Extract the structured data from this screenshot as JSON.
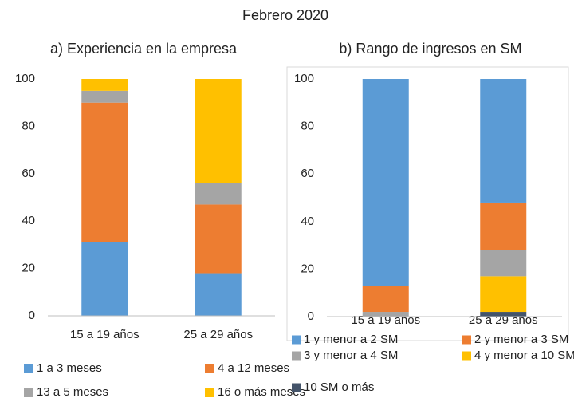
{
  "title": "Febrero 2020",
  "chart_data": [
    {
      "type": "bar",
      "stacked": true,
      "title": "a) Experiencia en la empresa",
      "categories": [
        "15 a 19 años",
        "25 a 29 años"
      ],
      "series": [
        {
          "name": "1 a 3 meses",
          "color": "#5b9bd5",
          "values": [
            31,
            18
          ]
        },
        {
          "name": "4 a 12 meses",
          "color": "#ed7d31",
          "values": [
            59,
            29
          ]
        },
        {
          "name": "13 a 5 meses",
          "color": "#a5a5a5",
          "values": [
            5,
            9
          ]
        },
        {
          "name": "16 o más meses",
          "color": "#ffc000",
          "values": [
            5,
            44
          ]
        }
      ],
      "ylim": [
        0,
        100
      ],
      "yticks": [
        0,
        20,
        40,
        60,
        80,
        100
      ]
    },
    {
      "type": "bar",
      "stacked": true,
      "title": "b) Rango de ingresos en SM",
      "categories": [
        "15 a 19 años",
        "25 a 29 años"
      ],
      "series": [
        {
          "name": "10 SM o más",
          "color": "#44546a",
          "values": [
            0,
            2
          ]
        },
        {
          "name": "4 y menor a 10 SM",
          "color": "#ffc000",
          "values": [
            0,
            15
          ]
        },
        {
          "name": "3 y menor a 4 SM",
          "color": "#a5a5a5",
          "values": [
            2,
            11
          ]
        },
        {
          "name": "2 y menor a 3 SM",
          "color": "#ed7d31",
          "values": [
            11,
            20
          ]
        },
        {
          "name": "1 y menor a 2 SM",
          "color": "#5b9bd5",
          "values": [
            87,
            52
          ]
        }
      ],
      "ylim": [
        0,
        100
      ],
      "yticks": [
        0,
        20,
        40,
        60,
        80,
        100
      ]
    }
  ]
}
